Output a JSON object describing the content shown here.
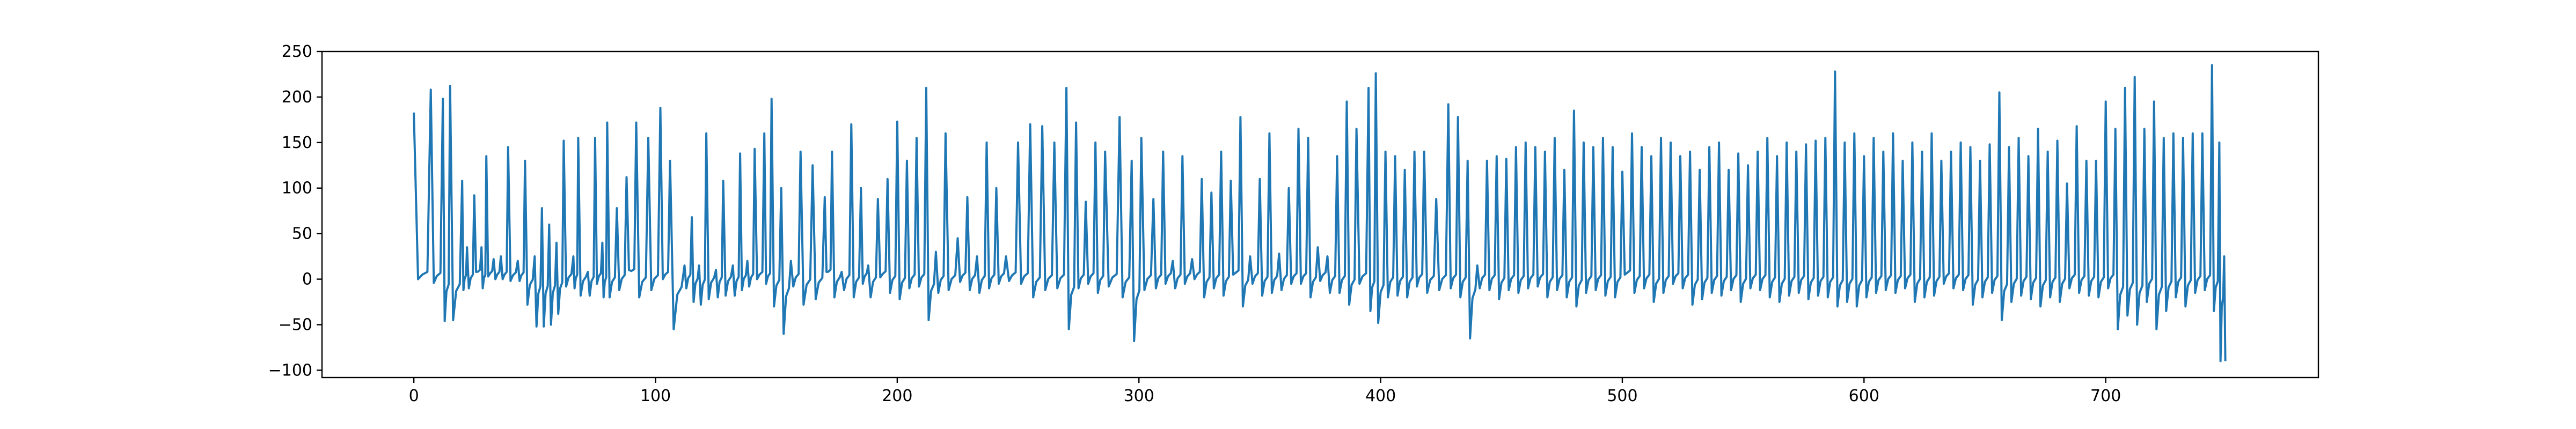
{
  "chart_data": {
    "type": "line",
    "title": "",
    "xlabel": "",
    "ylabel": "",
    "xlim": [
      -38,
      788
    ],
    "ylim": [
      -108,
      250
    ],
    "xticks": [
      0,
      100,
      200,
      300,
      400,
      500,
      600,
      700
    ],
    "yticks": [
      -100,
      -50,
      0,
      50,
      100,
      150,
      200,
      250
    ],
    "grid": false,
    "legend": "none",
    "series": [
      {
        "color": "#1f77b4",
        "peaks": [
          [
            0,
            183,
            0
          ],
          [
            7,
            208,
            -4
          ],
          [
            12,
            198,
            -46
          ],
          [
            15,
            212,
            -45
          ],
          [
            20,
            108,
            -12
          ],
          [
            22,
            35,
            -10
          ],
          [
            25,
            92,
            8
          ],
          [
            28,
            35,
            -10
          ],
          [
            30,
            135,
            3
          ],
          [
            33,
            22,
            0
          ],
          [
            36,
            25,
            0
          ],
          [
            39,
            145,
            -2
          ],
          [
            43,
            20,
            -2
          ],
          [
            46,
            130,
            -28
          ],
          [
            50,
            25,
            -52
          ],
          [
            53,
            78,
            -52
          ],
          [
            56,
            60,
            -50
          ],
          [
            59,
            40,
            -38
          ],
          [
            62,
            152,
            -8
          ],
          [
            66,
            25,
            -10
          ],
          [
            68,
            155,
            -18
          ],
          [
            72,
            8,
            -18
          ],
          [
            75,
            155,
            -5
          ],
          [
            78,
            40,
            -20
          ],
          [
            80,
            172,
            -20
          ],
          [
            84,
            78,
            -12
          ],
          [
            88,
            112,
            10
          ],
          [
            92,
            172,
            -20
          ],
          [
            97,
            155,
            -12
          ],
          [
            102,
            188,
            0
          ],
          [
            106,
            130,
            -55
          ],
          [
            112,
            15,
            -10
          ],
          [
            115,
            68,
            -25
          ],
          [
            118,
            15,
            -28
          ],
          [
            121,
            160,
            -22
          ],
          [
            125,
            10,
            -20
          ],
          [
            128,
            108,
            -18
          ],
          [
            132,
            15,
            -18
          ],
          [
            135,
            138,
            -12
          ],
          [
            138,
            20,
            -8
          ],
          [
            141,
            143,
            0
          ],
          [
            145,
            160,
            -5
          ],
          [
            148,
            198,
            -30
          ],
          [
            152,
            100,
            -60
          ],
          [
            156,
            20,
            -8
          ],
          [
            160,
            140,
            -28
          ],
          [
            165,
            125,
            -22
          ],
          [
            170,
            90,
            8
          ],
          [
            173,
            140,
            -20
          ],
          [
            177,
            8,
            -12
          ],
          [
            181,
            170,
            -20
          ],
          [
            185,
            100,
            -5
          ],
          [
            188,
            15,
            -20
          ],
          [
            192,
            88,
            2
          ],
          [
            196,
            110,
            -15
          ],
          [
            200,
            173,
            -22
          ],
          [
            204,
            130,
            -10
          ],
          [
            208,
            155,
            -8
          ],
          [
            212,
            210,
            -45
          ],
          [
            216,
            30,
            -15
          ],
          [
            220,
            160,
            -12
          ],
          [
            225,
            45,
            -3
          ],
          [
            229,
            90,
            -12
          ],
          [
            233,
            25,
            -15
          ],
          [
            237,
            150,
            -10
          ],
          [
            241,
            100,
            -5
          ],
          [
            245,
            25,
            -2
          ],
          [
            250,
            150,
            -5
          ],
          [
            255,
            170,
            -20
          ],
          [
            260,
            168,
            -12
          ],
          [
            265,
            150,
            -10
          ],
          [
            270,
            210,
            -55
          ],
          [
            274,
            172,
            -10
          ],
          [
            278,
            85,
            -5
          ],
          [
            282,
            150,
            -15
          ],
          [
            286,
            140,
            -8
          ],
          [
            292,
            178,
            -20
          ],
          [
            297,
            130,
            -68
          ],
          [
            301,
            155,
            -12
          ],
          [
            306,
            88,
            -10
          ],
          [
            310,
            140,
            -5
          ],
          [
            314,
            20,
            -10
          ],
          [
            318,
            135,
            -5
          ],
          [
            322,
            22,
            0
          ],
          [
            326,
            110,
            -20
          ],
          [
            330,
            95,
            -10
          ],
          [
            334,
            140,
            -18
          ],
          [
            338,
            108,
            5
          ],
          [
            342,
            178,
            -30
          ],
          [
            346,
            25,
            -5
          ],
          [
            350,
            110,
            -18
          ],
          [
            354,
            160,
            -15
          ],
          [
            358,
            28,
            -12
          ],
          [
            362,
            100,
            -5
          ],
          [
            366,
            165,
            -5
          ],
          [
            370,
            155,
            -20
          ],
          [
            374,
            35,
            -2
          ],
          [
            378,
            25,
            -15
          ],
          [
            382,
            135,
            -15
          ],
          [
            386,
            195,
            -28
          ],
          [
            390,
            165,
            -5
          ],
          [
            395,
            210,
            -35
          ],
          [
            398,
            226,
            -48
          ],
          [
            402,
            140,
            -20
          ],
          [
            406,
            135,
            -18
          ],
          [
            410,
            120,
            -20
          ],
          [
            414,
            140,
            -8
          ],
          [
            418,
            140,
            -15
          ],
          [
            423,
            88,
            -12
          ],
          [
            428,
            192,
            -10
          ],
          [
            432,
            178,
            -20
          ],
          [
            436,
            130,
            -65
          ],
          [
            440,
            15,
            -10
          ],
          [
            444,
            130,
            -12
          ],
          [
            448,
            135,
            -22
          ],
          [
            452,
            132,
            -12
          ],
          [
            456,
            145,
            -15
          ],
          [
            460,
            150,
            -10
          ],
          [
            464,
            145,
            -8
          ],
          [
            468,
            140,
            -20
          ],
          [
            472,
            155,
            -12
          ],
          [
            476,
            120,
            -20
          ],
          [
            480,
            185,
            -30
          ],
          [
            484,
            150,
            -15
          ],
          [
            488,
            145,
            -12
          ],
          [
            492,
            155,
            -18
          ],
          [
            496,
            145,
            -20
          ],
          [
            500,
            118,
            5
          ],
          [
            504,
            160,
            -15
          ],
          [
            508,
            145,
            -10
          ],
          [
            512,
            135,
            -25
          ],
          [
            516,
            155,
            -15
          ],
          [
            520,
            150,
            -5
          ],
          [
            524,
            135,
            -10
          ],
          [
            528,
            140,
            -28
          ],
          [
            532,
            120,
            -22
          ],
          [
            536,
            145,
            -15
          ],
          [
            540,
            150,
            -18
          ],
          [
            544,
            120,
            -12
          ],
          [
            548,
            138,
            -25
          ],
          [
            552,
            125,
            -10
          ],
          [
            556,
            140,
            -12
          ],
          [
            560,
            155,
            -20
          ],
          [
            564,
            135,
            -25
          ],
          [
            568,
            150,
            -18
          ],
          [
            572,
            140,
            -15
          ],
          [
            576,
            148,
            -22
          ],
          [
            580,
            152,
            -18
          ],
          [
            584,
            155,
            -20
          ],
          [
            588,
            228,
            -30
          ],
          [
            592,
            150,
            -25
          ],
          [
            596,
            160,
            -30
          ],
          [
            600,
            135,
            -20
          ],
          [
            604,
            155,
            -15
          ],
          [
            608,
            140,
            -12
          ],
          [
            612,
            160,
            -15
          ],
          [
            616,
            130,
            -10
          ],
          [
            620,
            150,
            -25
          ],
          [
            624,
            140,
            -20
          ],
          [
            628,
            160,
            -18
          ],
          [
            632,
            130,
            -5
          ],
          [
            636,
            140,
            -10
          ],
          [
            640,
            150,
            -12
          ],
          [
            644,
            145,
            -28
          ],
          [
            648,
            130,
            -20
          ],
          [
            652,
            148,
            -15
          ],
          [
            656,
            205,
            -45
          ],
          [
            660,
            145,
            -25
          ],
          [
            664,
            155,
            -18
          ],
          [
            668,
            135,
            -22
          ],
          [
            672,
            165,
            -30
          ],
          [
            676,
            140,
            -20
          ],
          [
            680,
            152,
            -25
          ],
          [
            684,
            105,
            -10
          ],
          [
            688,
            168,
            -15
          ],
          [
            692,
            130,
            -18
          ],
          [
            696,
            130,
            -20
          ],
          [
            700,
            195,
            -10
          ],
          [
            704,
            165,
            -55
          ],
          [
            708,
            210,
            -40
          ],
          [
            712,
            222,
            -50
          ],
          [
            716,
            165,
            -25
          ],
          [
            720,
            195,
            -55
          ],
          [
            724,
            155,
            -35
          ],
          [
            728,
            160,
            -20
          ],
          [
            732,
            155,
            -30
          ],
          [
            736,
            160,
            -15
          ],
          [
            740,
            160,
            -12
          ],
          [
            744,
            235,
            -35
          ],
          [
            747,
            150,
            -90
          ],
          [
            749,
            25,
            -90
          ]
        ]
      }
    ]
  }
}
